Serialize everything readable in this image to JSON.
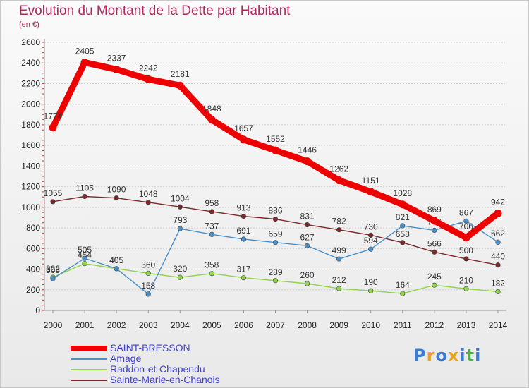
{
  "title": "Evolution du Montant de la Dette par Habitant",
  "subtitle": "(en €)",
  "logo": [
    "P",
    "r",
    "o",
    "x",
    "i",
    "t",
    "i"
  ],
  "logo_colors": [
    "#3a7bd5",
    "#e8a31c",
    "#3a7bd5",
    "#e8a31c",
    "#3a7bd5",
    "#4caf50",
    "#3a7bd5"
  ],
  "chart_data": {
    "type": "line",
    "title": "Evolution du Montant de la Dette par Habitant",
    "ylabel": "(en €)",
    "x": [
      "2000",
      "2001",
      "2002",
      "2003",
      "2004",
      "2005",
      "2006",
      "2007",
      "2008",
      "2009",
      "2010",
      "2011",
      "2012",
      "2013",
      "2014"
    ],
    "ylim": [
      0,
      2600
    ],
    "yticks": [
      0,
      200,
      400,
      600,
      800,
      1000,
      1200,
      1400,
      1600,
      1800,
      2000,
      2200,
      2400,
      2600
    ],
    "grid": true,
    "legend_position": "bottom-left",
    "series": [
      {
        "name": "SAINT-BRESSON",
        "color": "#ee0000",
        "values": [
          1774,
          2405,
          2337,
          2242,
          2181,
          1848,
          1657,
          1552,
          1446,
          1262,
          1151,
          1028,
          869,
          706,
          942
        ],
        "labels": [
          "1774",
          "2405",
          "2337",
          "2242",
          "2181",
          "1848",
          "1657",
          "1552",
          "1446",
          "1262",
          "1151",
          "1028",
          "869",
          "706",
          "942"
        ]
      },
      {
        "name": "Amage",
        "color": "#4a90c8",
        "values": [
          308,
          505,
          405,
          158,
          793,
          737,
          691,
          659,
          627,
          499,
          594,
          821,
          777,
          867,
          662
        ],
        "labels": [
          "308",
          "505",
          "405",
          "158",
          "793",
          "737",
          "691",
          "659",
          "627",
          "499",
          "594",
          "821",
          "777",
          "867",
          "662"
        ]
      },
      {
        "name": "Raddon-et-Chapendu",
        "color": "#8fd44a",
        "values": [
          322,
          454,
          405,
          360,
          320,
          358,
          317,
          289,
          260,
          212,
          190,
          164,
          245,
          210,
          182
        ],
        "labels": [
          "322",
          "454",
          "405",
          "360",
          "320",
          "358",
          "317",
          "289",
          "260",
          "212",
          "190",
          "164",
          "245",
          "210",
          "182"
        ]
      },
      {
        "name": "Sainte-Marie-en-Chanois",
        "color": "#7a2a2a",
        "values": [
          1055,
          1105,
          1090,
          1048,
          1004,
          958,
          913,
          886,
          831,
          782,
          730,
          658,
          566,
          500,
          440
        ],
        "labels": [
          "1055",
          "1105",
          "1090",
          "1048",
          "1004",
          "958",
          "913",
          "886",
          "831",
          "782",
          "730",
          "658",
          "566",
          "500",
          "440"
        ]
      }
    ]
  }
}
